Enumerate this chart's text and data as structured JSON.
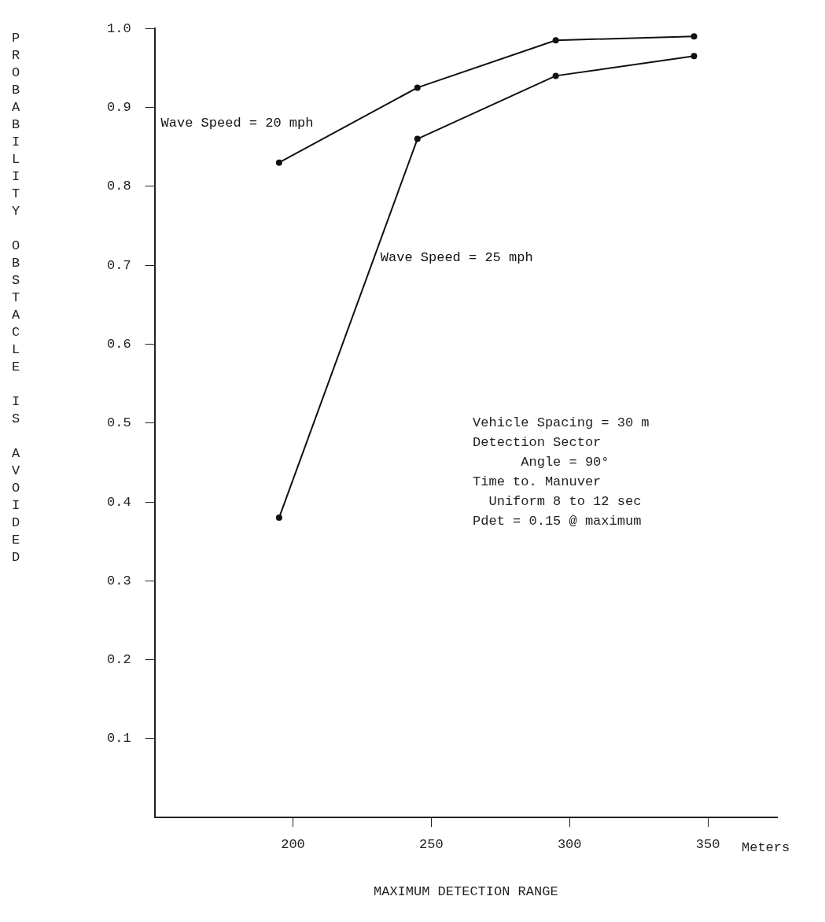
{
  "chart_data": {
    "type": "line",
    "xlabel": "MAXIMUM DETECTION RANGE",
    "ylabel": "PROBABILITY OBSTACLE IS AVOIDED",
    "x": [
      195,
      245,
      295,
      345
    ],
    "series": [
      {
        "name": "Wave Speed = 20 mph",
        "color": "#111111",
        "values": [
          0.83,
          0.925,
          0.985,
          0.99
        ]
      },
      {
        "name": "Wave Speed = 25 mph",
        "color": "#111111",
        "values": [
          0.38,
          0.86,
          0.94,
          0.965
        ]
      }
    ],
    "xlim": [
      150,
      375
    ],
    "xticks": [
      200,
      250,
      300,
      350
    ],
    "ylim": [
      0,
      1.0
    ],
    "yticks": [
      0.1,
      0.2,
      0.3,
      0.4,
      0.5,
      0.6,
      0.7,
      0.8,
      0.9,
      {
        "value": 1.0,
        "label": "1.0"
      }
    ],
    "grid": false,
    "legend": false,
    "marker": "circle",
    "line_style": "solid",
    "annotations": [
      "Meters",
      "Vehicle Spacing = 30 m",
      "Detection Sector",
      "      Angle = 90°",
      "Time to. Manuver",
      "  Uniform 8 to 12 sec",
      "Pdet = 0.15 @ maximum"
    ]
  }
}
